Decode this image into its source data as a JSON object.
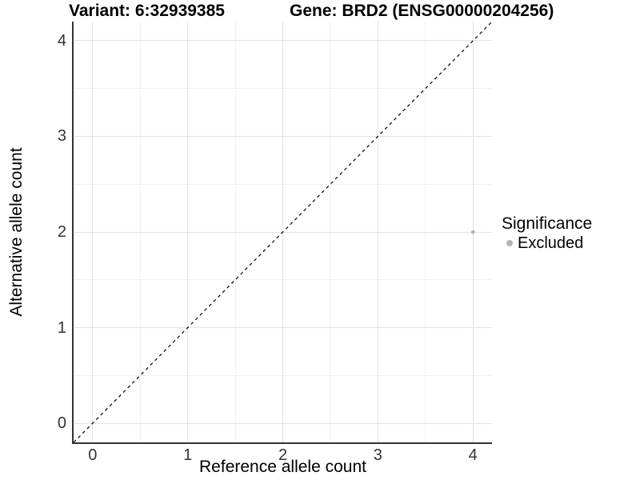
{
  "chart_data": {
    "type": "scatter",
    "titles": {
      "left": "Variant: 6:32939385",
      "right": "Gene: BRD2 (ENSG00000204256)"
    },
    "xlabel": "Reference allele count",
    "ylabel": "Alternative allele count",
    "xlim": [
      -0.2,
      4.2
    ],
    "ylim": [
      -0.2,
      4.2
    ],
    "x_ticks": [
      0,
      1,
      2,
      3,
      4
    ],
    "y_ticks": [
      0,
      1,
      2,
      3,
      4
    ],
    "x_minor_ticks": [
      0.5,
      1.5,
      2.5,
      3.5
    ],
    "y_minor_ticks": [
      0.5,
      1.5,
      2.5,
      3.5
    ],
    "grid": "on",
    "reference_line": {
      "type": "identity y=x",
      "style": "dashed",
      "color": "#000000"
    },
    "series": [
      {
        "name": "Excluded",
        "color": "#b3b3b3",
        "points": [
          {
            "x": 4,
            "y": 2
          }
        ]
      }
    ],
    "legend": {
      "position": "right",
      "title": "Significance",
      "items": [
        {
          "label": "Excluded",
          "color": "#b3b3b3"
        }
      ]
    }
  },
  "colors": {
    "background": "#ffffff",
    "axis_line": "#333333",
    "tick_label": "#333333",
    "grid_major": "#e3e3e3",
    "grid_minor": "#f1f1f1",
    "point": "#b3b3b3",
    "title_text": "#000000"
  }
}
